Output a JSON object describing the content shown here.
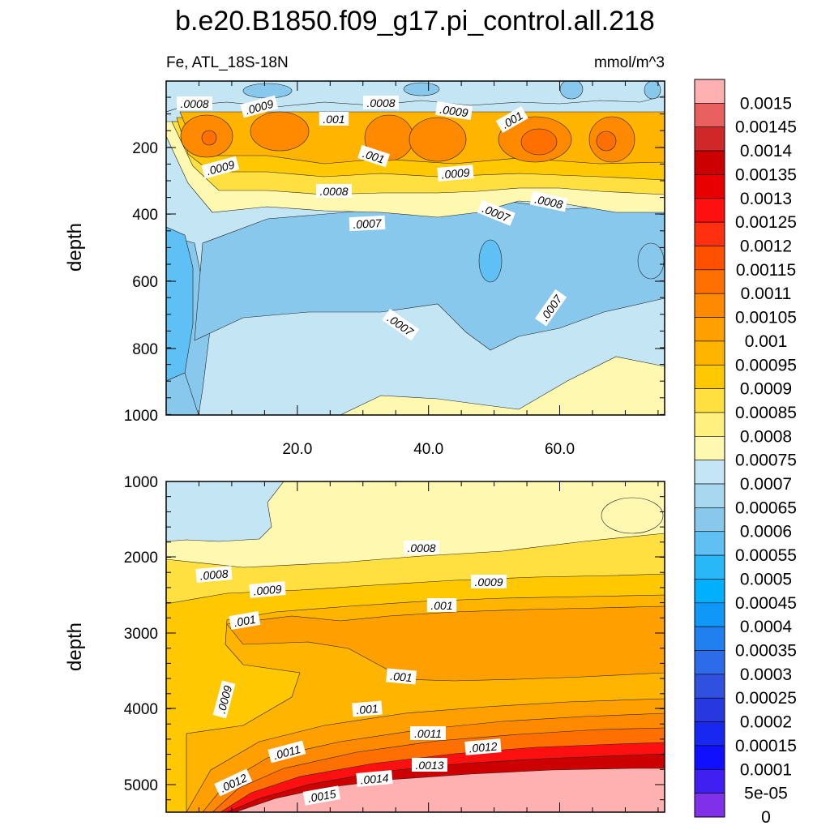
{
  "chart_data": {
    "type": "heatmap",
    "title": "b.e20.B1850.f09_g17.pi_control.all.218",
    "variable_label": "Fe, ATL_18S-18N",
    "units": "mmol/m^3",
    "panels": [
      {
        "name": "upper",
        "ylabel": "depth",
        "ylim": [
          1000,
          0
        ],
        "yticks": [
          "200",
          "400",
          "600",
          "800",
          "1000"
        ],
        "xlim": [
          0,
          76
        ],
        "xticks": [
          "20.0",
          "40.0",
          "60.0"
        ],
        "contour_labels": [
          ".0008",
          ".0009",
          ".0008",
          ".0009",
          ".001",
          ".001",
          ".001",
          ".0009",
          ".0009",
          ".0008",
          ".0008",
          ".0007",
          ".0007",
          ".0007",
          ".0007"
        ]
      },
      {
        "name": "lower",
        "ylabel": "depth",
        "ylim": [
          1000,
          5400
        ],
        "yticks": [
          "1000",
          "2000",
          "3000",
          "4000",
          "5000"
        ],
        "xlim": [
          0,
          76
        ],
        "xticks": [],
        "contour_labels": [
          ".0008",
          ".0008",
          ".0009",
          ".0009",
          ".001",
          ".001",
          ".001",
          ".0009",
          ".001",
          ".0011",
          ".0011",
          ".0012",
          ".0012",
          ".0013",
          ".0014",
          ".0015"
        ]
      }
    ],
    "colorbar": {
      "labels": [
        "0.0015",
        "0.00145",
        "0.0014",
        "0.00135",
        "0.0013",
        "0.00125",
        "0.0012",
        "0.00115",
        "0.0011",
        "0.00105",
        "0.001",
        "0.00095",
        "0.0009",
        "0.00085",
        "0.0008",
        "0.00075",
        "0.0007",
        "0.00065",
        "0.0006",
        "0.00055",
        "0.0005",
        "0.00045",
        "0.0004",
        "0.00035",
        "0.0003",
        "0.00025",
        "0.0002",
        "0.00015",
        "0.0001",
        "5e-05",
        "0"
      ],
      "colors": [
        "#ffb0b0",
        "#e86060",
        "#d02828",
        "#cc0000",
        "#e80000",
        "#ff1010",
        "#ff3010",
        "#ff5000",
        "#ff7000",
        "#ff8a00",
        "#ffa000",
        "#ffb400",
        "#ffc800",
        "#ffe040",
        "#fff080",
        "#fff8b0",
        "#c4e6f4",
        "#a8d8f0",
        "#88c8ec",
        "#60c0f4",
        "#28b8f8",
        "#00b0ff",
        "#1098f8",
        "#2080f0",
        "#2c6ce8",
        "#3050e0",
        "#2838e0",
        "#1828f0",
        "#1010ff",
        "#4020f0",
        "#8030e8"
      ]
    },
    "palette": {
      "deep": "#5ec0f4",
      "blue_mid": "#88c8ec",
      "blue_light": "#c4e6f4",
      "pale_yellow": "#fff8b0",
      "yellow": "#ffe040",
      "gold": "#ffc800",
      "amber": "#ffb400",
      "orange_light": "#ffa000",
      "orange": "#ff8a00",
      "orange_deep": "#ff7000",
      "red": "#ff1010",
      "red_dark": "#cc0000",
      "pink": "#ffb0b0"
    }
  }
}
